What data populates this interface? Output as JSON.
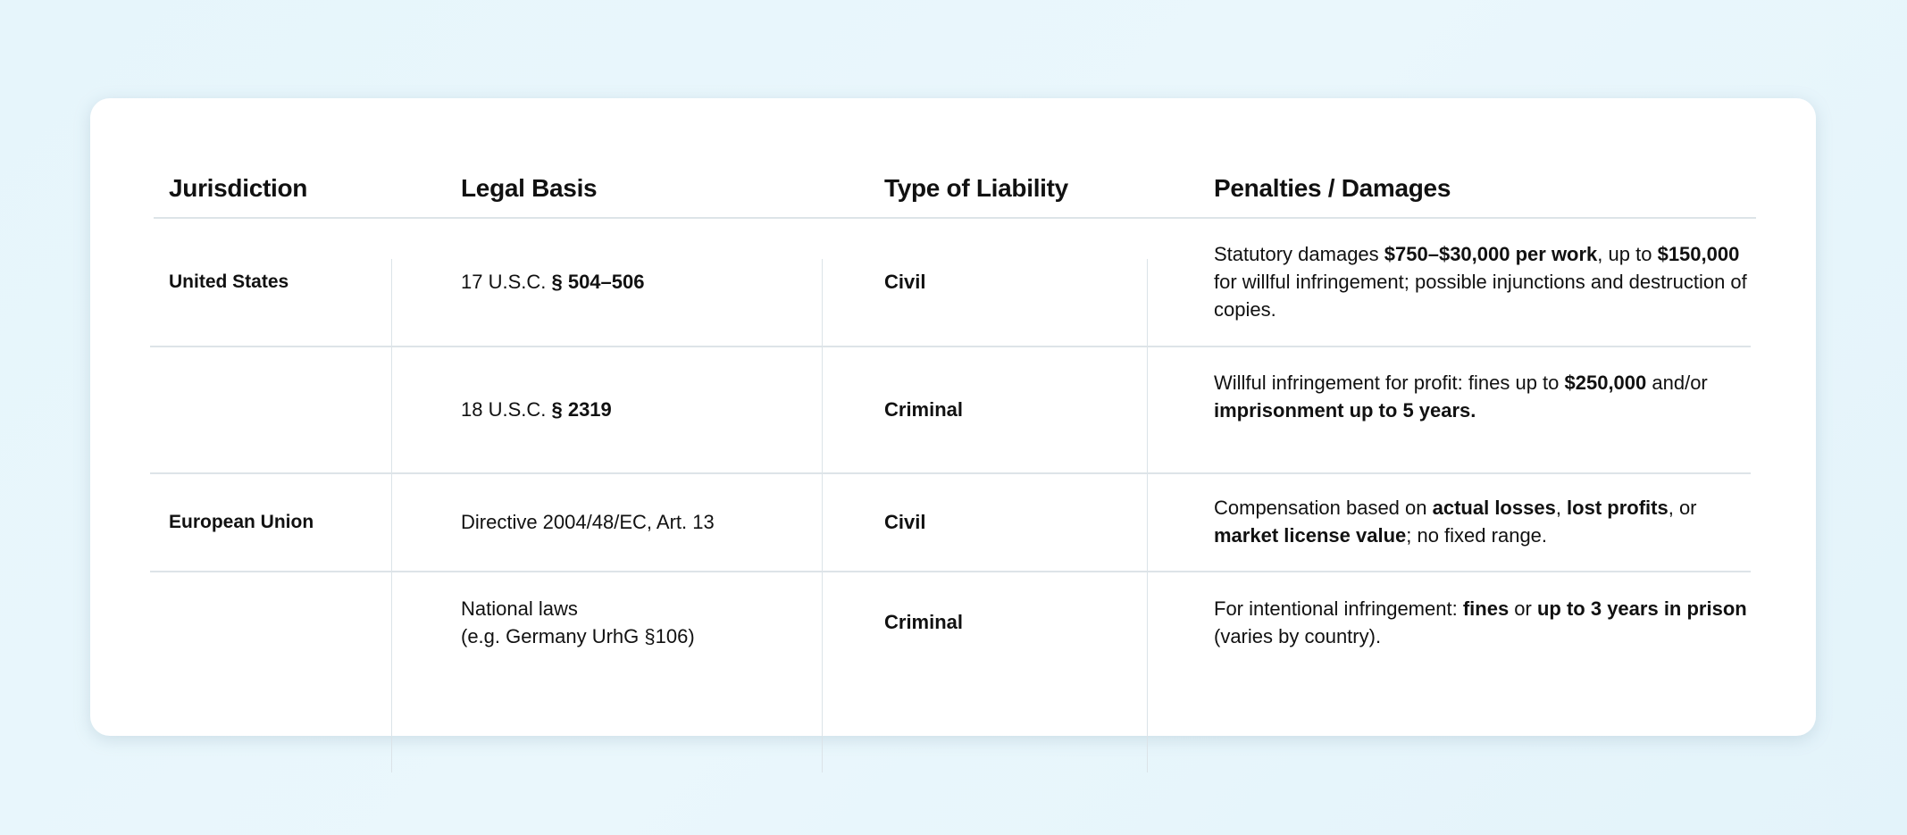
{
  "headers": [
    "Jurisdiction",
    "Legal Basis",
    "Type of Liability",
    "Penalties / Damages"
  ],
  "rows": [
    {
      "jurisdiction": "United States",
      "basis": [
        {
          "t": "17 U.S.C. ",
          "b": false
        },
        {
          "t": "§ 504–506",
          "b": true
        }
      ],
      "liability": "Civil",
      "penalty": [
        {
          "t": "Statutory damages ",
          "b": false
        },
        {
          "t": "$750–$30,000 per work",
          "b": true
        },
        {
          "t": ", up to ",
          "b": false
        },
        {
          "t": "$150,000",
          "b": true
        },
        {
          "t": " for willful infringement; possible injunctions and destruction of copies.",
          "b": false
        }
      ]
    },
    {
      "jurisdiction": "",
      "basis": [
        {
          "t": "18 U.S.C. ",
          "b": false
        },
        {
          "t": "§ 2319",
          "b": true
        }
      ],
      "liability": "Criminal",
      "penalty": [
        {
          "t": "Willful infringement for profit: fines up to ",
          "b": false
        },
        {
          "t": "$250,000",
          "b": true
        },
        {
          "t": " and/or ",
          "b": false
        },
        {
          "t": "imprisonment up to 5 years.",
          "b": true
        }
      ]
    },
    {
      "jurisdiction": "European Union",
      "basis": [
        {
          "t": "Directive 2004/48/EC, Art. 13",
          "b": false
        }
      ],
      "liability": "Civil",
      "penalty": [
        {
          "t": "Compensation based on ",
          "b": false
        },
        {
          "t": "actual losses",
          "b": true
        },
        {
          "t": ", ",
          "b": false
        },
        {
          "t": "lost profits",
          "b": true
        },
        {
          "t": ", or ",
          "b": false
        },
        {
          "t": "market license value",
          "b": true
        },
        {
          "t": "; no fixed range.",
          "b": false
        }
      ]
    },
    {
      "jurisdiction": "",
      "basis": [
        {
          "t": "National laws",
          "b": false
        },
        {
          "t": "(e.g. Germany UrhG §106)",
          "b": false,
          "br": true
        }
      ],
      "liability": "Criminal",
      "penalty": [
        {
          "t": "For intentional infringement: ",
          "b": false
        },
        {
          "t": "fines",
          "b": true
        },
        {
          "t": " or ",
          "b": false
        },
        {
          "t": "up to 3 years in prison",
          "b": true
        },
        {
          "t": " (varies by country).",
          "b": false
        }
      ]
    }
  ]
}
